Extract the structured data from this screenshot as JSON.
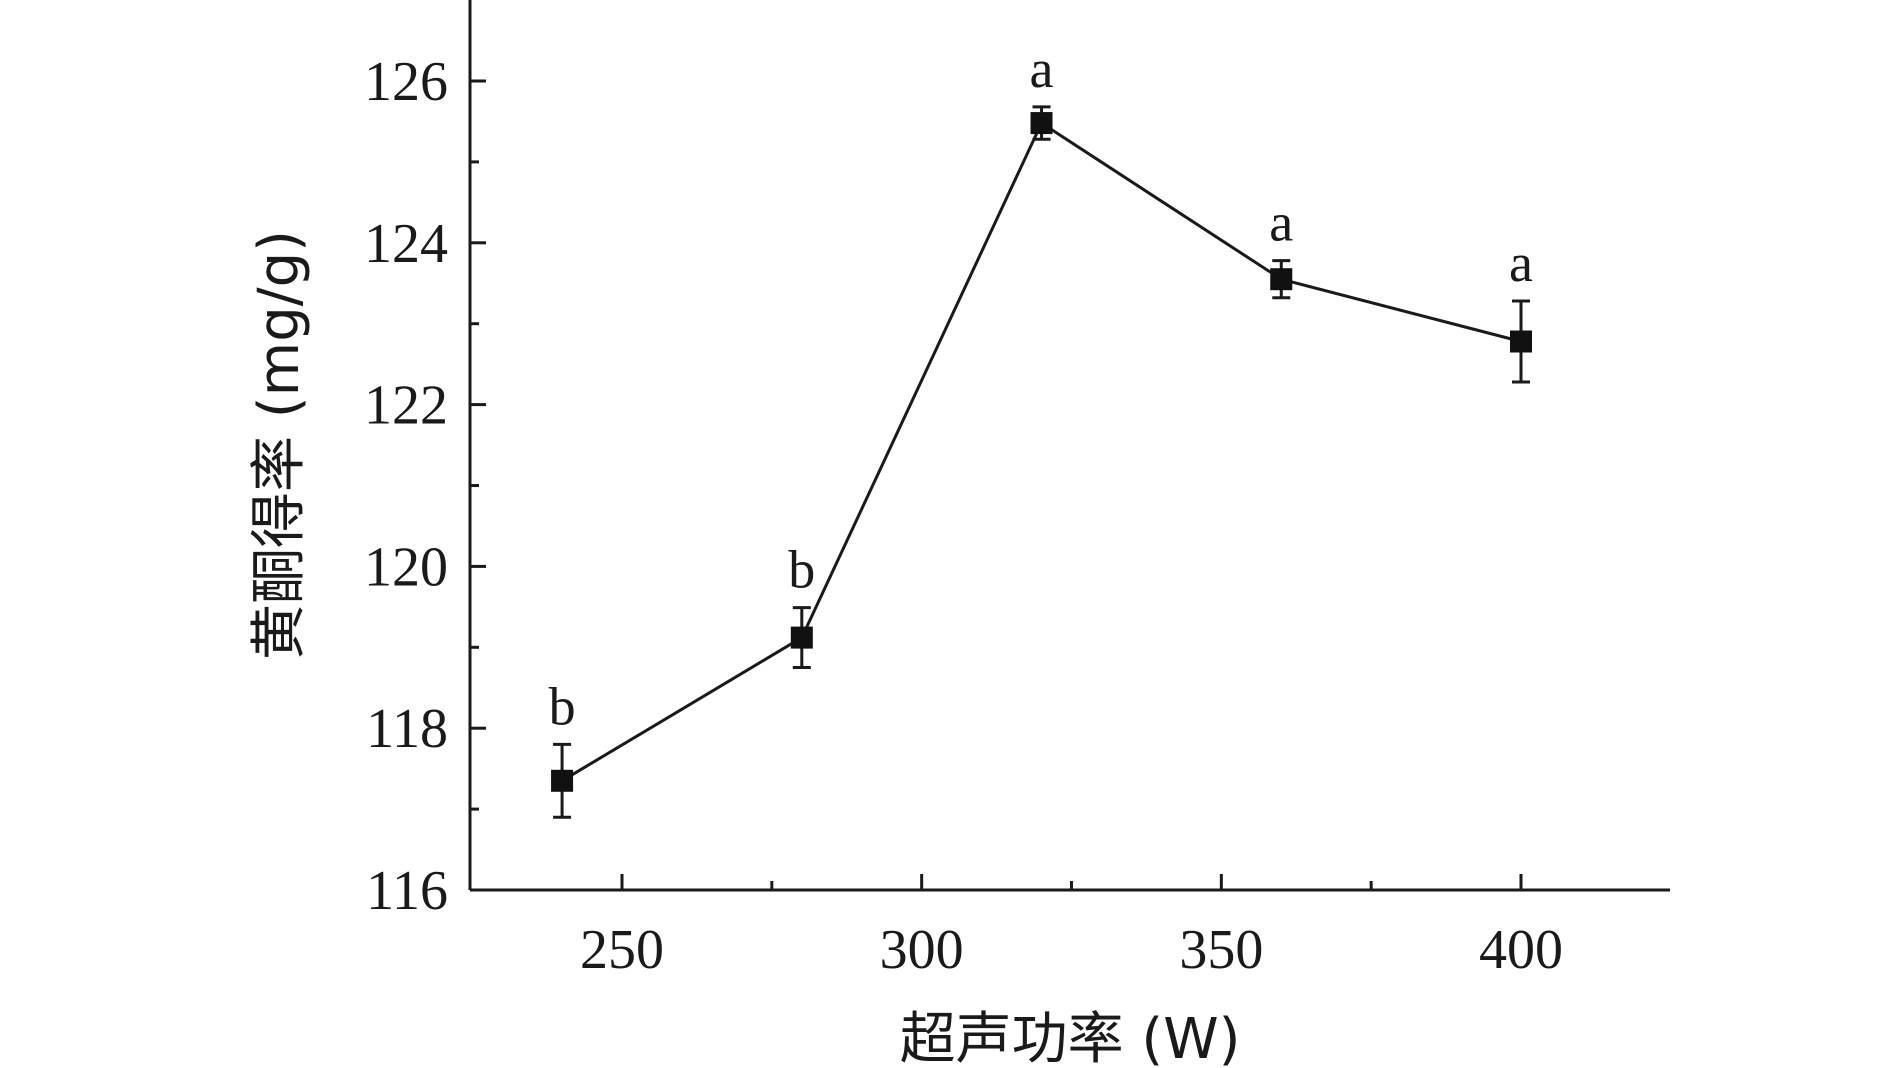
{
  "chart_data": {
    "type": "line",
    "xlabel": "超声功率 (W)",
    "ylabel": "黄酮得率 (mg/g)",
    "xlim": [
      225,
      425
    ],
    "ylim": [
      116,
      127
    ],
    "xticks": [
      250,
      300,
      350,
      400
    ],
    "yticks": [
      116,
      118,
      120,
      122,
      124,
      126
    ],
    "grid": false,
    "series": [
      {
        "x": [
          240,
          280,
          320,
          360,
          400
        ],
        "values": [
          117.35,
          119.12,
          125.48,
          123.55,
          122.78
        ],
        "errors": [
          0.45,
          0.37,
          0.2,
          0.23,
          0.5
        ],
        "labels": [
          "b",
          "b",
          "a",
          "a",
          "a"
        ],
        "color": "#111111"
      }
    ]
  }
}
